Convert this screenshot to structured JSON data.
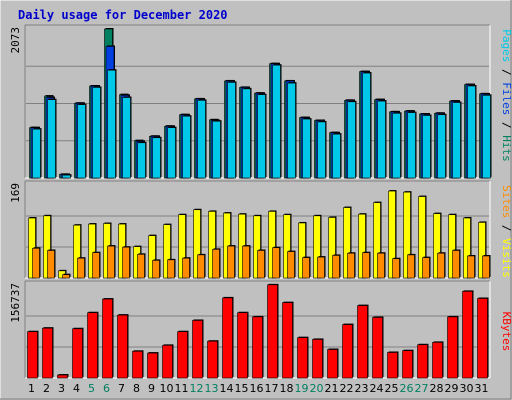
{
  "chart_data": {
    "title": "Daily usage for December 2020",
    "days": [
      "1",
      "2",
      "3",
      "4",
      "5",
      "6",
      "7",
      "8",
      "9",
      "10",
      "11",
      "12",
      "13",
      "14",
      "15",
      "16",
      "17",
      "18",
      "19",
      "20",
      "21",
      "22",
      "23",
      "24",
      "25",
      "26",
      "27",
      "28",
      "29",
      "30",
      "31"
    ],
    "weekend_days": [
      "5",
      "6",
      "12",
      "13",
      "19",
      "20",
      "26",
      "27"
    ],
    "colors": {
      "background": "#c0c0c0",
      "title": "#0000cc",
      "axis_max": "#000000",
      "weekday_label": "#000000",
      "weekend_label": "#008060",
      "hits": "#008060",
      "files": "#0040e0",
      "pages": "#00c8e8",
      "visits": "#ffff00",
      "sites": "#ff8c00",
      "kbytes": "#ff0000"
    },
    "panels": [
      {
        "type": "bar",
        "max_label": "2073",
        "ylim": [
          0,
          2073
        ],
        "legend": [
          {
            "label": "Pages",
            "color_key": "pages"
          },
          {
            "label": " / ",
            "color_key": "axis_max"
          },
          {
            "label": "Files",
            "color_key": "files"
          },
          {
            "label": " / ",
            "color_key": "axis_max"
          },
          {
            "label": "Hits",
            "color_key": "hits"
          }
        ],
        "series": [
          {
            "color_key": "hits",
            "values": [
              700,
              1140,
              50,
              1040,
              1280,
              2073,
              1160,
              520,
              580,
              720,
              880,
              1100,
              810,
              1350,
              1260,
              1180,
              1590,
              1350,
              840,
              800,
              630,
              1080,
              1480,
              1090,
              920,
              930,
              890,
              900,
              1070,
              1300,
              1170
            ]
          },
          {
            "color_key": "files",
            "values": [
              700,
              1120,
              50,
              1040,
              1280,
              1830,
              1150,
              510,
              580,
              720,
              880,
              1100,
              800,
              1350,
              1260,
              1180,
              1590,
              1350,
              840,
              800,
              630,
              1080,
              1480,
              1090,
              920,
              930,
              890,
              900,
              1070,
              1300,
              1170
            ]
          },
          {
            "color_key": "pages",
            "values": [
              680,
              1090,
              40,
              1020,
              1260,
              1500,
              1120,
              490,
              560,
              700,
              860,
              1080,
              790,
              1330,
              1240,
              1160,
              1570,
              1320,
              820,
              780,
              610,
              1060,
              1460,
              1070,
              900,
              910,
              870,
              880,
              1050,
              1280,
              1150
            ]
          }
        ]
      },
      {
        "type": "bar",
        "max_label": "169",
        "ylim": [
          0,
          169
        ],
        "legend": [
          {
            "label": "Sites",
            "color_key": "sites"
          },
          {
            "label": " / ",
            "color_key": "axis_max"
          },
          {
            "label": "Visits",
            "color_key": "visits"
          }
        ],
        "series": [
          {
            "color_key": "visits",
            "values": [
              109,
              113,
              13,
              96,
              98,
              99,
              98,
              57,
              77,
              97,
              115,
              124,
              121,
              118,
              116,
              113,
              121,
              115,
              100,
              113,
              110,
              128,
              116,
              137,
              158,
              156,
              148,
              117,
              115,
              109,
              101
            ]
          },
          {
            "color_key": "sites",
            "values": [
              54,
              50,
              6,
              36,
              46,
              58,
              56,
              43,
              32,
              33,
              36,
              42,
              52,
              58,
              58,
              50,
              55,
              48,
              37,
              38,
              41,
              45,
              46,
              45,
              35,
              42,
              37,
              45,
              50,
              40,
              40
            ]
          }
        ]
      },
      {
        "type": "bar",
        "max_label": "156737",
        "ylim": [
          0,
          156737
        ],
        "legend": [
          {
            "label": "KBytes",
            "color_key": "kbytes"
          }
        ],
        "series": [
          {
            "color_key": "kbytes",
            "values": [
              78000,
              84000,
              5000,
              83000,
              110000,
              133000,
              106000,
              45000,
              42000,
              55000,
              78000,
              97000,
              62000,
              135000,
              110000,
              103000,
              157000,
              127000,
              68000,
              65000,
              48000,
              90000,
              122000,
              102000,
              43000,
              46000,
              56000,
              60000,
              103000,
              146000,
              134000
            ]
          }
        ]
      }
    ]
  }
}
